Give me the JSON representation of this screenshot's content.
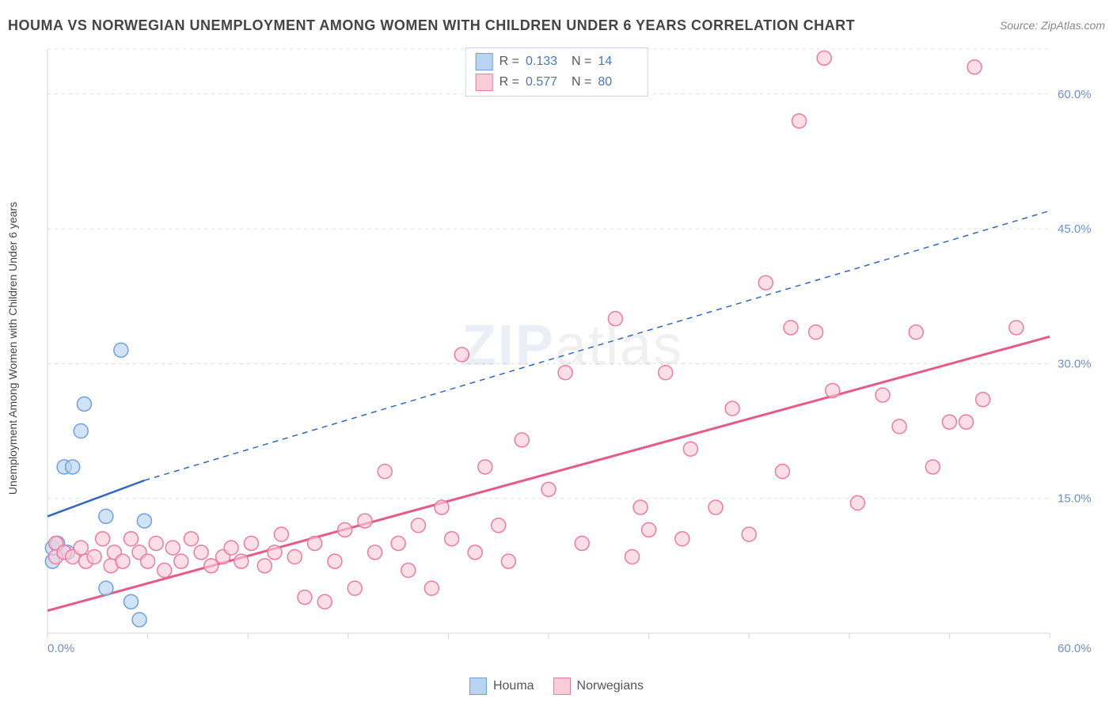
{
  "title": "HOUMA VS NORWEGIAN UNEMPLOYMENT AMONG WOMEN WITH CHILDREN UNDER 6 YEARS CORRELATION CHART",
  "source": "Source: ZipAtlas.com",
  "y_axis_label": "Unemployment Among Women with Children Under 6 years",
  "watermark_bold": "ZIP",
  "watermark_light": "atlas",
  "chart": {
    "type": "scatter",
    "xlim": [
      0,
      60
    ],
    "ylim": [
      0,
      65
    ],
    "x_tick_min_label": "0.0%",
    "x_tick_max_label": "60.0%",
    "y_ticks": [
      15,
      30,
      45,
      60
    ],
    "y_tick_labels": [
      "15.0%",
      "30.0%",
      "45.0%",
      "60.0%"
    ],
    "grid_color": "#e0e0e0",
    "axis_color": "#d4d4d4",
    "background": "#ffffff",
    "marker_radius": 9,
    "marker_stroke_width": 1.5,
    "series": [
      {
        "name": "Houma",
        "fill": "#b9d4f3",
        "stroke": "#6ea0e0",
        "r_label": "R =",
        "r_value": "0.133",
        "n_label": "N =",
        "n_value": "14",
        "trend": {
          "color": "#2f66c4",
          "width": 2.5,
          "dash": "none",
          "x1": 0,
          "y1": 13,
          "x2": 5.8,
          "y2": 17,
          "dash_ext_x2": 60,
          "dash_ext_y2": 47
        },
        "points": [
          [
            0.3,
            8
          ],
          [
            0.3,
            9.5
          ],
          [
            0.6,
            10
          ],
          [
            1.2,
            9
          ],
          [
            1.0,
            18.5
          ],
          [
            1.5,
            18.5
          ],
          [
            2.0,
            22.5
          ],
          [
            2.2,
            25.5
          ],
          [
            3.5,
            13
          ],
          [
            3.5,
            5
          ],
          [
            4.4,
            31.5
          ],
          [
            5.0,
            3.5
          ],
          [
            5.5,
            1.5
          ],
          [
            5.8,
            12.5
          ]
        ]
      },
      {
        "name": "Norwegians",
        "fill": "#f9cdd8",
        "stroke": "#ec7ba0",
        "r_label": "R =",
        "r_value": "0.577",
        "n_label": "N =",
        "n_value": "80",
        "trend": {
          "color": "#e75a88",
          "width": 3,
          "dash": "none",
          "x1": 0,
          "y1": 2.5,
          "x2": 60,
          "y2": 33
        },
        "points": [
          [
            0.5,
            10
          ],
          [
            0.5,
            8.5
          ],
          [
            1.0,
            9
          ],
          [
            1.5,
            8.5
          ],
          [
            2.0,
            9.5
          ],
          [
            2.3,
            8
          ],
          [
            2.8,
            8.5
          ],
          [
            3.3,
            10.5
          ],
          [
            3.8,
            7.5
          ],
          [
            4.0,
            9
          ],
          [
            4.5,
            8
          ],
          [
            5.0,
            10.5
          ],
          [
            5.5,
            9
          ],
          [
            6.0,
            8
          ],
          [
            6.5,
            10
          ],
          [
            7.0,
            7
          ],
          [
            7.5,
            9.5
          ],
          [
            8.0,
            8
          ],
          [
            8.6,
            10.5
          ],
          [
            9.2,
            9
          ],
          [
            9.8,
            7.5
          ],
          [
            10.5,
            8.5
          ],
          [
            11.0,
            9.5
          ],
          [
            11.6,
            8
          ],
          [
            12.2,
            10
          ],
          [
            13.0,
            7.5
          ],
          [
            13.6,
            9
          ],
          [
            14.0,
            11
          ],
          [
            14.8,
            8.5
          ],
          [
            15.4,
            4
          ],
          [
            16.0,
            10
          ],
          [
            16.6,
            3.5
          ],
          [
            17.2,
            8
          ],
          [
            17.8,
            11.5
          ],
          [
            18.4,
            5
          ],
          [
            19.0,
            12.5
          ],
          [
            19.6,
            9
          ],
          [
            20.2,
            18
          ],
          [
            21.0,
            10
          ],
          [
            21.6,
            7
          ],
          [
            22.2,
            12
          ],
          [
            23.0,
            5
          ],
          [
            23.6,
            14
          ],
          [
            24.2,
            10.5
          ],
          [
            24.8,
            31
          ],
          [
            25.6,
            9
          ],
          [
            26.2,
            18.5
          ],
          [
            27.0,
            12
          ],
          [
            27.6,
            8
          ],
          [
            28.4,
            21.5
          ],
          [
            30.0,
            16
          ],
          [
            31.0,
            29
          ],
          [
            32.0,
            10
          ],
          [
            34.0,
            35
          ],
          [
            35.0,
            8.5
          ],
          [
            35.5,
            14
          ],
          [
            36.0,
            11.5
          ],
          [
            37.0,
            29
          ],
          [
            38.0,
            10.5
          ],
          [
            38.5,
            20.5
          ],
          [
            40.0,
            14
          ],
          [
            41.0,
            25
          ],
          [
            42.0,
            11
          ],
          [
            43.0,
            39
          ],
          [
            44.0,
            18
          ],
          [
            44.5,
            34
          ],
          [
            45.0,
            57
          ],
          [
            46.0,
            33.5
          ],
          [
            46.5,
            64
          ],
          [
            47.0,
            27
          ],
          [
            48.5,
            14.5
          ],
          [
            50.0,
            26.5
          ],
          [
            51.0,
            23
          ],
          [
            52.0,
            33.5
          ],
          [
            53.0,
            18.5
          ],
          [
            54.0,
            23.5
          ],
          [
            55.0,
            23.5
          ],
          [
            56.0,
            26
          ],
          [
            58.0,
            34
          ],
          [
            55.5,
            63
          ]
        ]
      }
    ]
  },
  "legend_bottom": [
    {
      "label": "Houma",
      "fill": "#b9d4f3",
      "stroke": "#6ea0e0"
    },
    {
      "label": "Norwegians",
      "fill": "#f9cdd8",
      "stroke": "#ec7ba0"
    }
  ]
}
